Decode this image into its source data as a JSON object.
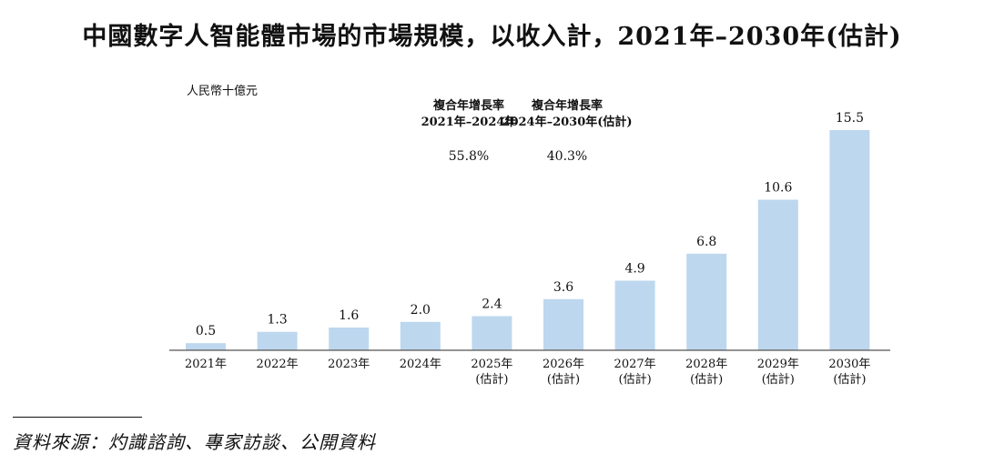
{
  "chart_data": {
    "type": "bar",
    "title": "中國數字人智能體市場的市場規模，以收入計，2021年–2030年(估計)",
    "ylabel": "人民幣十億元",
    "categories": [
      [
        "2021年"
      ],
      [
        "2022年"
      ],
      [
        "2023年"
      ],
      [
        "2024年"
      ],
      [
        "2025年",
        "(估計)"
      ],
      [
        "2026年",
        "(估計)"
      ],
      [
        "2027年",
        "(估計)"
      ],
      [
        "2028年",
        "(估計)"
      ],
      [
        "2029年",
        "(估計)"
      ],
      [
        "2030年",
        "(估計)"
      ]
    ],
    "values": [
      0.5,
      1.3,
      1.6,
      2.0,
      2.4,
      3.6,
      4.9,
      6.8,
      10.6,
      15.5
    ],
    "value_labels": [
      "0.5",
      "1.3",
      "1.6",
      "2.0",
      "2.4",
      "3.6",
      "4.9",
      "6.8",
      "10.6",
      "15.5"
    ],
    "ylim": [
      0,
      15.5
    ],
    "grid": false,
    "bar_color": "#bdd7ee",
    "cagr": [
      {
        "label_line1": "複合年增長率",
        "label_line2": "2021年–2024年",
        "value": "55.8%"
      },
      {
        "label_line1": "複合年增長率",
        "label_line2": "2024年–2030年(估計)",
        "value": "40.3%"
      }
    ]
  },
  "source": "資料來源：灼識諮詢、專家訪談、公開資料"
}
